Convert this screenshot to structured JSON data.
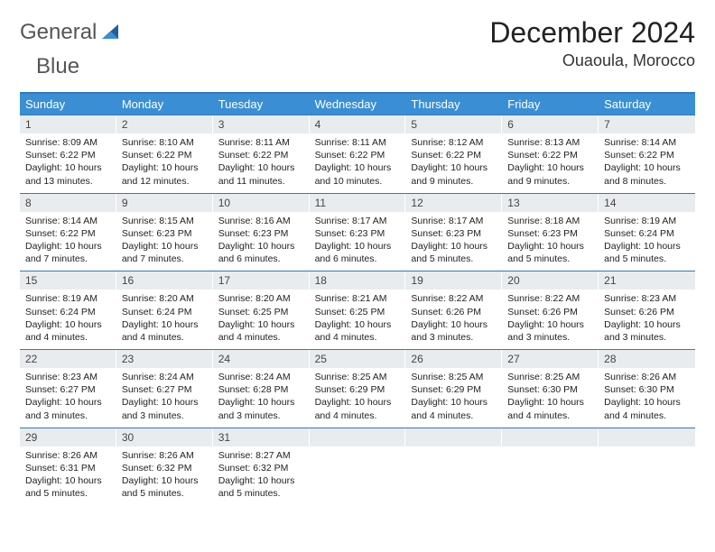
{
  "brand": {
    "word1": "General",
    "word2": "Blue"
  },
  "title": "December 2024",
  "location": "Ouaoula, Morocco",
  "colors": {
    "header_bg": "#3a8fd4",
    "border": "#2e7bbf",
    "daynum_bg": "#e9ecef",
    "text": "#222222",
    "brand_gray": "#555555",
    "brand_blue": "#3a7fc4"
  },
  "day_names": [
    "Sunday",
    "Monday",
    "Tuesday",
    "Wednesday",
    "Thursday",
    "Friday",
    "Saturday"
  ],
  "weeks": [
    [
      {
        "n": "1",
        "sr": "Sunrise: 8:09 AM",
        "ss": "Sunset: 6:22 PM",
        "d1": "Daylight: 10 hours",
        "d2": "and 13 minutes."
      },
      {
        "n": "2",
        "sr": "Sunrise: 8:10 AM",
        "ss": "Sunset: 6:22 PM",
        "d1": "Daylight: 10 hours",
        "d2": "and 12 minutes."
      },
      {
        "n": "3",
        "sr": "Sunrise: 8:11 AM",
        "ss": "Sunset: 6:22 PM",
        "d1": "Daylight: 10 hours",
        "d2": "and 11 minutes."
      },
      {
        "n": "4",
        "sr": "Sunrise: 8:11 AM",
        "ss": "Sunset: 6:22 PM",
        "d1": "Daylight: 10 hours",
        "d2": "and 10 minutes."
      },
      {
        "n": "5",
        "sr": "Sunrise: 8:12 AM",
        "ss": "Sunset: 6:22 PM",
        "d1": "Daylight: 10 hours",
        "d2": "and 9 minutes."
      },
      {
        "n": "6",
        "sr": "Sunrise: 8:13 AM",
        "ss": "Sunset: 6:22 PM",
        "d1": "Daylight: 10 hours",
        "d2": "and 9 minutes."
      },
      {
        "n": "7",
        "sr": "Sunrise: 8:14 AM",
        "ss": "Sunset: 6:22 PM",
        "d1": "Daylight: 10 hours",
        "d2": "and 8 minutes."
      }
    ],
    [
      {
        "n": "8",
        "sr": "Sunrise: 8:14 AM",
        "ss": "Sunset: 6:22 PM",
        "d1": "Daylight: 10 hours",
        "d2": "and 7 minutes."
      },
      {
        "n": "9",
        "sr": "Sunrise: 8:15 AM",
        "ss": "Sunset: 6:23 PM",
        "d1": "Daylight: 10 hours",
        "d2": "and 7 minutes."
      },
      {
        "n": "10",
        "sr": "Sunrise: 8:16 AM",
        "ss": "Sunset: 6:23 PM",
        "d1": "Daylight: 10 hours",
        "d2": "and 6 minutes."
      },
      {
        "n": "11",
        "sr": "Sunrise: 8:17 AM",
        "ss": "Sunset: 6:23 PM",
        "d1": "Daylight: 10 hours",
        "d2": "and 6 minutes."
      },
      {
        "n": "12",
        "sr": "Sunrise: 8:17 AM",
        "ss": "Sunset: 6:23 PM",
        "d1": "Daylight: 10 hours",
        "d2": "and 5 minutes."
      },
      {
        "n": "13",
        "sr": "Sunrise: 8:18 AM",
        "ss": "Sunset: 6:23 PM",
        "d1": "Daylight: 10 hours",
        "d2": "and 5 minutes."
      },
      {
        "n": "14",
        "sr": "Sunrise: 8:19 AM",
        "ss": "Sunset: 6:24 PM",
        "d1": "Daylight: 10 hours",
        "d2": "and 5 minutes."
      }
    ],
    [
      {
        "n": "15",
        "sr": "Sunrise: 8:19 AM",
        "ss": "Sunset: 6:24 PM",
        "d1": "Daylight: 10 hours",
        "d2": "and 4 minutes."
      },
      {
        "n": "16",
        "sr": "Sunrise: 8:20 AM",
        "ss": "Sunset: 6:24 PM",
        "d1": "Daylight: 10 hours",
        "d2": "and 4 minutes."
      },
      {
        "n": "17",
        "sr": "Sunrise: 8:20 AM",
        "ss": "Sunset: 6:25 PM",
        "d1": "Daylight: 10 hours",
        "d2": "and 4 minutes."
      },
      {
        "n": "18",
        "sr": "Sunrise: 8:21 AM",
        "ss": "Sunset: 6:25 PM",
        "d1": "Daylight: 10 hours",
        "d2": "and 4 minutes."
      },
      {
        "n": "19",
        "sr": "Sunrise: 8:22 AM",
        "ss": "Sunset: 6:26 PM",
        "d1": "Daylight: 10 hours",
        "d2": "and 3 minutes."
      },
      {
        "n": "20",
        "sr": "Sunrise: 8:22 AM",
        "ss": "Sunset: 6:26 PM",
        "d1": "Daylight: 10 hours",
        "d2": "and 3 minutes."
      },
      {
        "n": "21",
        "sr": "Sunrise: 8:23 AM",
        "ss": "Sunset: 6:26 PM",
        "d1": "Daylight: 10 hours",
        "d2": "and 3 minutes."
      }
    ],
    [
      {
        "n": "22",
        "sr": "Sunrise: 8:23 AM",
        "ss": "Sunset: 6:27 PM",
        "d1": "Daylight: 10 hours",
        "d2": "and 3 minutes."
      },
      {
        "n": "23",
        "sr": "Sunrise: 8:24 AM",
        "ss": "Sunset: 6:27 PM",
        "d1": "Daylight: 10 hours",
        "d2": "and 3 minutes."
      },
      {
        "n": "24",
        "sr": "Sunrise: 8:24 AM",
        "ss": "Sunset: 6:28 PM",
        "d1": "Daylight: 10 hours",
        "d2": "and 3 minutes."
      },
      {
        "n": "25",
        "sr": "Sunrise: 8:25 AM",
        "ss": "Sunset: 6:29 PM",
        "d1": "Daylight: 10 hours",
        "d2": "and 4 minutes."
      },
      {
        "n": "26",
        "sr": "Sunrise: 8:25 AM",
        "ss": "Sunset: 6:29 PM",
        "d1": "Daylight: 10 hours",
        "d2": "and 4 minutes."
      },
      {
        "n": "27",
        "sr": "Sunrise: 8:25 AM",
        "ss": "Sunset: 6:30 PM",
        "d1": "Daylight: 10 hours",
        "d2": "and 4 minutes."
      },
      {
        "n": "28",
        "sr": "Sunrise: 8:26 AM",
        "ss": "Sunset: 6:30 PM",
        "d1": "Daylight: 10 hours",
        "d2": "and 4 minutes."
      }
    ],
    [
      {
        "n": "29",
        "sr": "Sunrise: 8:26 AM",
        "ss": "Sunset: 6:31 PM",
        "d1": "Daylight: 10 hours",
        "d2": "and 5 minutes."
      },
      {
        "n": "30",
        "sr": "Sunrise: 8:26 AM",
        "ss": "Sunset: 6:32 PM",
        "d1": "Daylight: 10 hours",
        "d2": "and 5 minutes."
      },
      {
        "n": "31",
        "sr": "Sunrise: 8:27 AM",
        "ss": "Sunset: 6:32 PM",
        "d1": "Daylight: 10 hours",
        "d2": "and 5 minutes."
      },
      {
        "n": "",
        "sr": "",
        "ss": "",
        "d1": "",
        "d2": ""
      },
      {
        "n": "",
        "sr": "",
        "ss": "",
        "d1": "",
        "d2": ""
      },
      {
        "n": "",
        "sr": "",
        "ss": "",
        "d1": "",
        "d2": ""
      },
      {
        "n": "",
        "sr": "",
        "ss": "",
        "d1": "",
        "d2": ""
      }
    ]
  ]
}
